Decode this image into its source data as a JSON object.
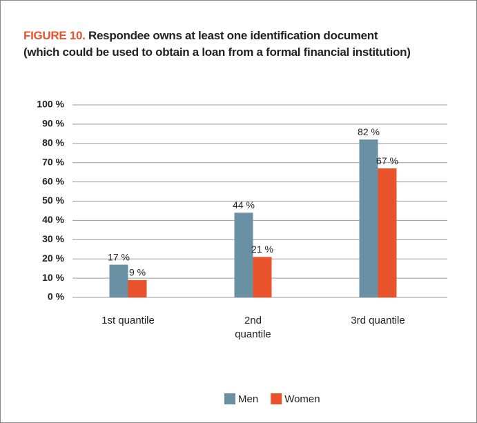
{
  "chart_data": {
    "type": "bar",
    "figure_label": "FIGURE 10.",
    "title": "Respondee owns at least one identification document",
    "subtitle": "(which could be used to obtain a loan from a formal financial institution)",
    "categories": [
      "1st quantile",
      "2nd quantile",
      "3rd quantile"
    ],
    "series": [
      {
        "name": "Men",
        "color": "#6a91a3",
        "values": [
          17,
          44,
          82
        ],
        "value_labels": [
          "17 %",
          "44 %",
          "82 %"
        ]
      },
      {
        "name": "Women",
        "color": "#e9532b",
        "values": [
          9,
          21,
          67
        ],
        "value_labels": [
          "9 %",
          "21 %",
          "67 %"
        ]
      }
    ],
    "ylim": [
      0,
      100
    ],
    "yticks": [
      {
        "value": 0,
        "label": "0 %"
      },
      {
        "value": 10,
        "label": "10 %"
      },
      {
        "value": 20,
        "label": "20 %"
      },
      {
        "value": 30,
        "label": "30 %"
      },
      {
        "value": 40,
        "label": "40 %"
      },
      {
        "value": 50,
        "label": "50 %"
      },
      {
        "value": 60,
        "label": "60 %"
      },
      {
        "value": 70,
        "label": "70 %"
      },
      {
        "value": 80,
        "label": "80 %"
      },
      {
        "value": 90,
        "label": "90 %"
      },
      {
        "value": 100,
        "label": "100 %"
      }
    ],
    "grid": true
  }
}
